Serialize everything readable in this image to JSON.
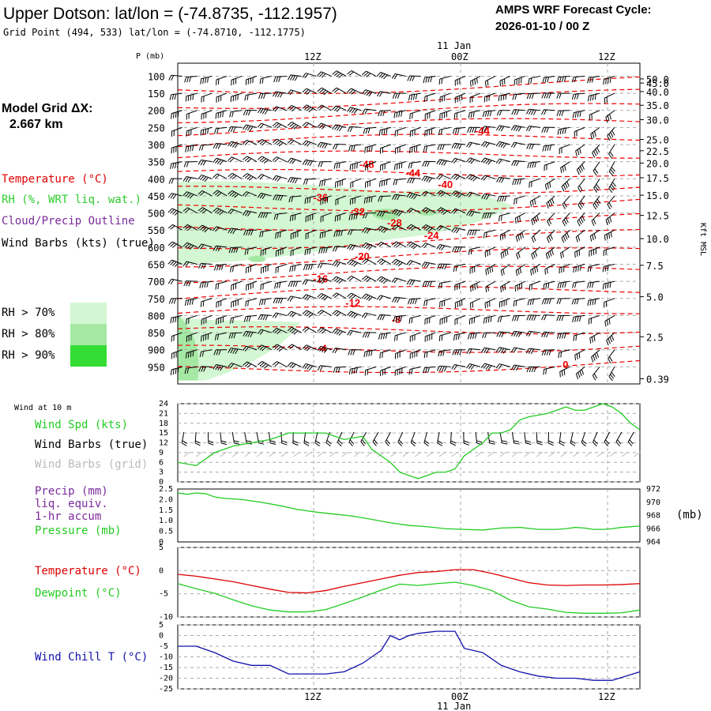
{
  "header": {
    "title": "Upper Dotson:  lat/lon = (-74.8735, -112.1957)",
    "subtitle": "Grid Point (494, 533) lat/lon = (-74.8710, -112.1775)",
    "forecast_title": "AMPS WRF Forecast Cycle:",
    "forecast_cycle": "2026-01-10 / 00  Z"
  },
  "left_panel": {
    "grid_label": "Model Grid ΔX:",
    "grid_value": "2.667 km",
    "legend": [
      {
        "text": "Temperature (°C)",
        "color": "#e00000"
      },
      {
        "text": "RH (%, WRT liq. wat.)",
        "color": "#2ecc2e"
      },
      {
        "text": "Cloud/Precip Outline",
        "color": "#7a2a9a"
      },
      {
        "text": "Wind Barbs (kts) (true)",
        "color": "#000000"
      }
    ],
    "rh_bins": [
      {
        "text": "RH > 70%",
        "color": "#d2f7d2"
      },
      {
        "text": "RH > 80%",
        "color": "#a4e8a4"
      },
      {
        "text": "RH > 90%",
        "color": "#33dd33"
      }
    ]
  },
  "time_axis": {
    "top_date": "11 Jan",
    "bottom_date": "11 Jan",
    "ticks": [
      {
        "label": "12Z",
        "x": 0.3
      },
      {
        "label": "00Z",
        "x": 0.6
      },
      {
        "label": "12Z",
        "x": 0.9
      }
    ]
  },
  "chart_data": [
    {
      "id": "cross-section",
      "type": "heatmap",
      "ylabel": "P (mb)",
      "ylabel_right": "Kft MSL",
      "pressure_ticks": [
        100,
        150,
        200,
        250,
        300,
        350,
        400,
        450,
        500,
        550,
        600,
        650,
        700,
        750,
        800,
        850,
        900,
        950
      ],
      "height_ticks": [
        "50.0",
        "45.0",
        "40.0",
        "35.0",
        "30.0",
        "25.0",
        "22.5",
        "20.0",
        "17.5",
        "15.0",
        "12.5",
        "10.0",
        "7.5",
        "5.0",
        "2.5",
        "0.39"
      ],
      "height_tick_pressures": [
        108,
        120,
        145,
        185,
        227,
        285,
        318,
        354,
        397,
        448,
        507,
        575,
        653,
        745,
        862,
        985
      ],
      "temperature_labels": [
        {
          "value": "-44",
          "t": 0.66,
          "p": 258
        },
        {
          "value": "-48",
          "t": 0.41,
          "p": 356
        },
        {
          "value": "-44",
          "t": 0.51,
          "p": 382
        },
        {
          "value": "-40",
          "t": 0.58,
          "p": 415
        },
        {
          "value": "-36",
          "t": 0.31,
          "p": 454
        },
        {
          "value": "-32",
          "t": 0.39,
          "p": 495
        },
        {
          "value": "-28",
          "t": 0.47,
          "p": 528
        },
        {
          "value": "-24",
          "t": 0.55,
          "p": 565
        },
        {
          "value": "-20",
          "t": 0.4,
          "p": 626
        },
        {
          "value": "-16",
          "t": 0.31,
          "p": 692
        },
        {
          "value": "-12",
          "t": 0.38,
          "p": 762
        },
        {
          "value": "-8",
          "t": 0.48,
          "p": 810
        },
        {
          "value": "-4",
          "t": 0.32,
          "p": 895
        },
        {
          "value": "0",
          "t": 0.85,
          "p": 942
        }
      ]
    },
    {
      "id": "wind",
      "type": "line",
      "title": "Wind at 10 m",
      "series": [
        {
          "name": "Wind Spd (kts)",
          "color": "#22cc22",
          "t": [
            0,
            0.04,
            0.08,
            0.12,
            0.16,
            0.2,
            0.24,
            0.28,
            0.32,
            0.36,
            0.4,
            0.42,
            0.44,
            0.46,
            0.48,
            0.5,
            0.52,
            0.54,
            0.56,
            0.58,
            0.6,
            0.62,
            0.64,
            0.66,
            0.68,
            0.7,
            0.72,
            0.74,
            0.76,
            0.8,
            0.84,
            0.86,
            0.88,
            0.9,
            0.92,
            0.94,
            0.96,
            0.98,
            1.0
          ],
          "v": [
            6,
            5,
            9,
            11,
            12,
            13,
            15,
            15,
            15,
            13,
            14,
            10,
            8,
            6,
            3,
            2,
            1,
            2,
            3,
            3,
            4,
            8,
            10,
            12,
            15,
            15,
            16,
            19,
            20,
            21,
            23,
            22,
            22,
            23,
            24,
            23,
            21,
            18,
            16
          ]
        }
      ],
      "labels": [
        "Wind Barbs (true)",
        "Wind Barbs (grid)"
      ],
      "label_colors": [
        "#000000",
        "#bbbbbb"
      ],
      "ylim": [
        0,
        24
      ],
      "yticks": [
        0,
        3,
        6,
        9,
        12,
        15,
        18,
        21,
        24
      ]
    },
    {
      "id": "precip-pressure",
      "type": "line",
      "labels_left": [
        "Precip (mm)",
        "liq. equiv.",
        "1-hr accum"
      ],
      "series": [
        {
          "name": "Pressure (mb)",
          "color": "#22cc22",
          "t": [
            0,
            0.02,
            0.04,
            0.06,
            0.08,
            0.1,
            0.14,
            0.18,
            0.22,
            0.26,
            0.3,
            0.34,
            0.38,
            0.42,
            0.46,
            0.5,
            0.54,
            0.58,
            0.62,
            0.66,
            0.7,
            0.74,
            0.78,
            0.82,
            0.84,
            0.86,
            0.88,
            0.9,
            0.92,
            0.94,
            0.96,
            1.0
          ],
          "v": [
            971.4,
            971.2,
            971.4,
            971.3,
            970.8,
            970.6,
            970.4,
            970.0,
            969.5,
            968.9,
            968.5,
            968.2,
            967.9,
            967.4,
            966.9,
            966.5,
            966.3,
            966.0,
            965.9,
            965.8,
            966.1,
            966.2,
            965.9,
            965.9,
            966.0,
            966.2,
            966.1,
            965.9,
            965.9,
            966.0,
            966.2,
            966.4
          ]
        }
      ],
      "yticks_left": [
        "0",
        "0.5",
        "1.0",
        "1.5",
        "2.0",
        "2.5"
      ],
      "yticks_right": [
        964,
        966,
        968,
        970,
        972
      ],
      "ylim_right": [
        964,
        972
      ],
      "ylabel_right": "(mb)"
    },
    {
      "id": "temperature",
      "type": "line",
      "series": [
        {
          "name": "Temperature (°C)",
          "color": "#dd0000",
          "t": [
            0,
            0.04,
            0.08,
            0.12,
            0.16,
            0.2,
            0.24,
            0.28,
            0.32,
            0.36,
            0.4,
            0.44,
            0.48,
            0.52,
            0.56,
            0.6,
            0.64,
            0.68,
            0.72,
            0.76,
            0.8,
            0.84,
            0.88,
            0.92,
            0.96,
            1.0
          ],
          "v": [
            -0.8,
            -1.2,
            -1.8,
            -2.4,
            -3.2,
            -4.0,
            -4.7,
            -4.8,
            -4.3,
            -3.4,
            -2.6,
            -1.8,
            -1.0,
            -0.4,
            -0.2,
            0.2,
            0.2,
            -0.6,
            -1.6,
            -2.6,
            -3.1,
            -3.2,
            -3.1,
            -3.1,
            -3.0,
            -2.8
          ]
        },
        {
          "name": "Dewpoint (°C)",
          "color": "#22cc22",
          "t": [
            0,
            0.04,
            0.08,
            0.12,
            0.16,
            0.2,
            0.24,
            0.28,
            0.32,
            0.36,
            0.4,
            0.44,
            0.48,
            0.52,
            0.56,
            0.6,
            0.64,
            0.68,
            0.72,
            0.76,
            0.8,
            0.84,
            0.88,
            0.92,
            0.96,
            1.0
          ],
          "v": [
            -2.8,
            -3.9,
            -4.9,
            -6.3,
            -7.6,
            -8.5,
            -8.9,
            -8.9,
            -8.4,
            -7.1,
            -5.7,
            -4.2,
            -2.9,
            -3.2,
            -2.8,
            -2.5,
            -3.2,
            -4.3,
            -6.4,
            -7.8,
            -8.3,
            -9.0,
            -9.2,
            -9.2,
            -9.1,
            -8.5
          ]
        }
      ],
      "ylim": [
        -10,
        5
      ],
      "yticks": [
        "5",
        "0",
        "-5",
        "-10"
      ]
    },
    {
      "id": "wind-chill",
      "type": "line",
      "series": [
        {
          "name": "Wind Chill T (°C)",
          "color": "#1111aa",
          "t": [
            0,
            0.04,
            0.08,
            0.12,
            0.16,
            0.2,
            0.24,
            0.28,
            0.32,
            0.36,
            0.4,
            0.44,
            0.46,
            0.48,
            0.5,
            0.52,
            0.54,
            0.56,
            0.58,
            0.6,
            0.62,
            0.66,
            0.7,
            0.74,
            0.78,
            0.82,
            0.86,
            0.9,
            0.94,
            1.0
          ],
          "v": [
            -5,
            -5,
            -8,
            -12,
            -14,
            -14,
            -18,
            -18,
            -18,
            -17,
            -13,
            -7,
            0,
            -2,
            0,
            1,
            1.5,
            2,
            2,
            2,
            -6,
            -8,
            -14,
            -17,
            -19,
            -20,
            -20,
            -21,
            -21,
            -17
          ]
        }
      ],
      "ylim": [
        -25,
        5
      ],
      "yticks": [
        "5",
        "0",
        "-5",
        "-10",
        "-15",
        "-20",
        "-25"
      ]
    }
  ]
}
